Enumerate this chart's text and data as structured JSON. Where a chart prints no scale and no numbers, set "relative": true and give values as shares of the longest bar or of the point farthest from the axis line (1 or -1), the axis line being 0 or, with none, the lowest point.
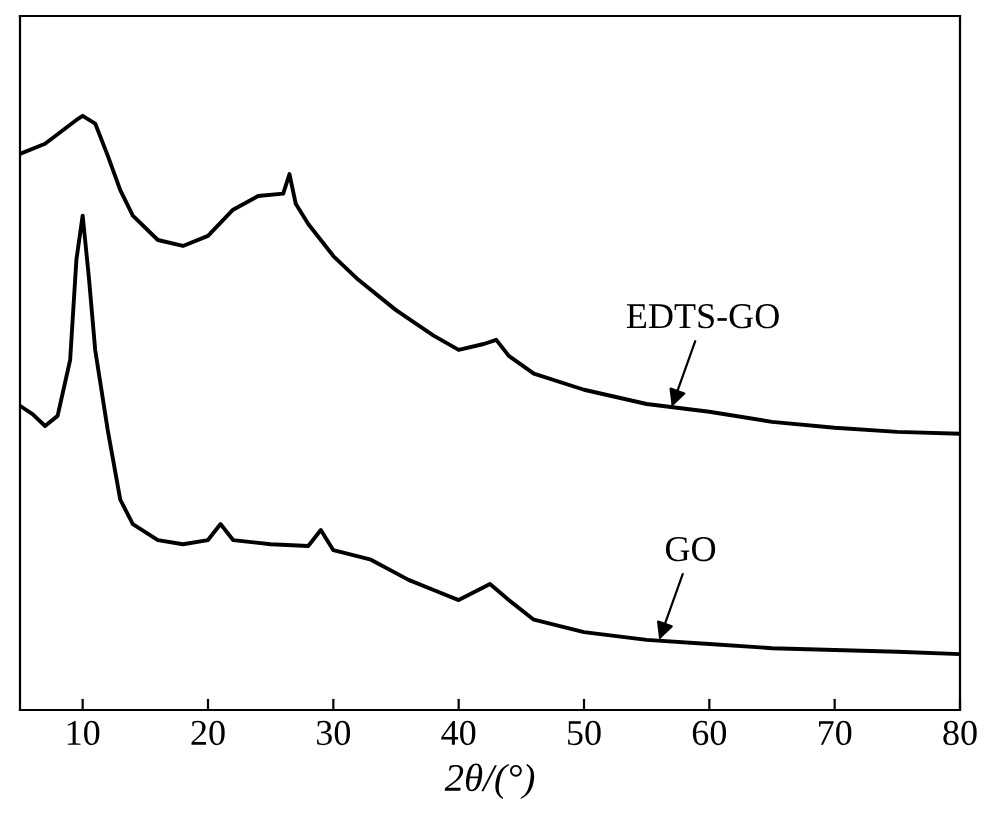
{
  "chart_data": {
    "type": "line",
    "relative": true,
    "xlabel": "2θ/(°)",
    "xlim": [
      5,
      80
    ],
    "xticks": [
      10,
      20,
      30,
      40,
      50,
      60,
      70,
      80
    ],
    "tick_labels": "x",
    "grid": false,
    "legend": false,
    "marker": "none",
    "line_style": "solid",
    "series": [
      {
        "color": "#000000",
        "x": [
          5,
          7,
          9.5,
          10,
          11,
          12,
          13,
          14,
          16,
          18,
          20,
          22,
          24,
          26,
          26.5,
          27,
          28,
          30,
          32,
          35,
          38,
          40,
          42,
          43,
          44,
          46,
          50,
          55,
          60,
          65,
          70,
          75,
          80
        ],
        "values": [
          0.936,
          0.953,
          0.993,
          1,
          0.987,
          0.933,
          0.875,
          0.832,
          0.791,
          0.781,
          0.798,
          0.842,
          0.865,
          0.869,
          0.902,
          0.852,
          0.818,
          0.764,
          0.724,
          0.673,
          0.63,
          0.606,
          0.616,
          0.623,
          0.596,
          0.566,
          0.539,
          0.515,
          0.502,
          0.485,
          0.475,
          0.468,
          0.465
        ]
      },
      {
        "color": "#000000",
        "x": [
          5,
          6,
          7,
          8,
          9,
          9.5,
          10,
          10.5,
          11,
          12,
          13,
          14,
          16,
          18,
          20,
          21,
          22,
          25,
          28,
          29,
          30,
          33,
          36,
          38,
          40,
          42.5,
          44,
          46,
          50,
          55,
          60,
          65,
          70,
          75,
          80
        ],
        "values": [
          0.512,
          0.498,
          0.478,
          0.495,
          0.589,
          0.758,
          0.832,
          0.727,
          0.606,
          0.471,
          0.354,
          0.313,
          0.286,
          0.279,
          0.286,
          0.313,
          0.286,
          0.279,
          0.276,
          0.303,
          0.269,
          0.253,
          0.219,
          0.202,
          0.185,
          0.212,
          0.185,
          0.152,
          0.131,
          0.118,
          0.111,
          0.104,
          0.101,
          0.098,
          0.094
        ]
      }
    ],
    "annotations": [
      {
        "text": "EDTS-GO",
        "x": 57,
        "y": 0.51
      },
      {
        "text": "GO",
        "x": 56,
        "y": 0.118
      }
    ]
  }
}
